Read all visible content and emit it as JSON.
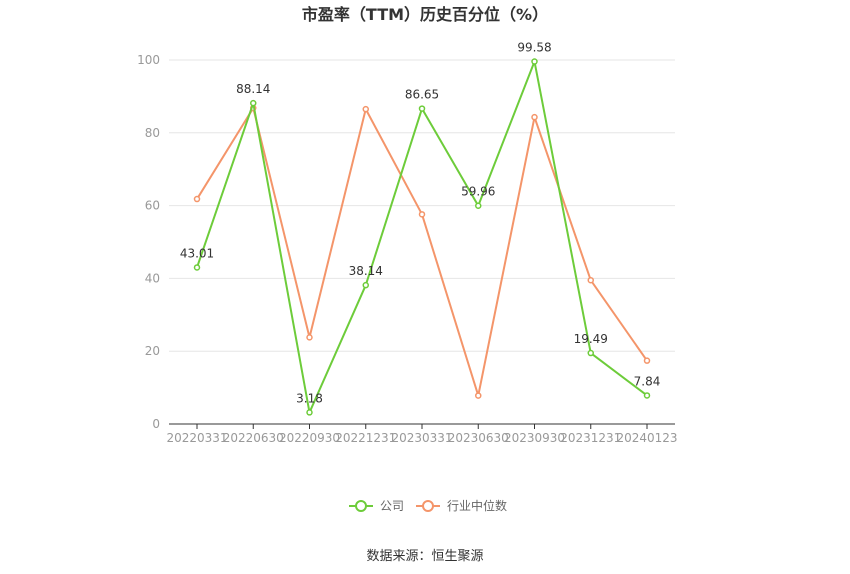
{
  "chart_data": {
    "type": "line",
    "title": "市盈率（TTM）历史百分位（%）",
    "categories": [
      "20220331",
      "20220630",
      "20220930",
      "20221231",
      "20230331",
      "20230630",
      "20230930",
      "20231231",
      "20240123"
    ],
    "series": [
      {
        "name": "公司",
        "color": "#6dcc3a",
        "values": [
          43.01,
          88.14,
          3.18,
          38.14,
          86.65,
          59.96,
          99.58,
          19.49,
          7.84
        ],
        "labels": [
          "43.01",
          "88.14",
          "3.18",
          "38.14",
          "86.65",
          "59.96",
          "99.58",
          "19.49",
          "7.84"
        ]
      },
      {
        "name": "行业中位数",
        "color": "#f4956a",
        "values": [
          61.8,
          86.8,
          23.8,
          86.5,
          57.6,
          7.8,
          84.3,
          39.5,
          17.4
        ]
      }
    ],
    "yticks": [
      "0",
      "20",
      "40",
      "60",
      "80",
      "100"
    ],
    "ylim": [
      0,
      100
    ],
    "grid": true,
    "legend_position": "bottom-center",
    "source": "数据来源：恒生聚源"
  }
}
